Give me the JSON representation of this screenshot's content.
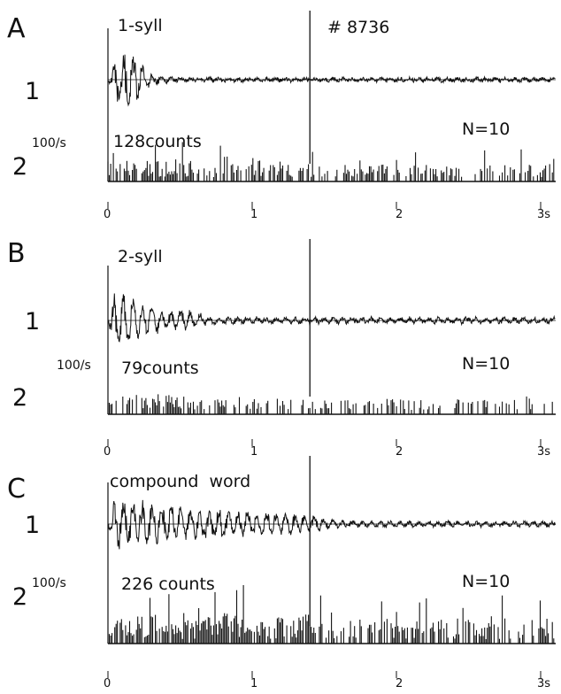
{
  "figure": {
    "cell_id": "# 8736",
    "marker_time_s": 1.4,
    "tick_labels": [
      "0",
      "1",
      "2",
      "3s"
    ],
    "channel_labels": [
      "1",
      "2"
    ],
    "rate_scale_label": "100/s",
    "ink_color": "#111111",
    "background": "#ffffff"
  },
  "panels": [
    {
      "letter": "A",
      "stimulus": "1-syll",
      "counts_label": "128counts",
      "n_label": "N=10"
    },
    {
      "letter": "B",
      "stimulus": "2-syll",
      "counts_label": "79counts",
      "n_label": "N=10"
    },
    {
      "letter": "C",
      "stimulus": "compound  word",
      "counts_label": "226 counts",
      "n_label": "N=10"
    }
  ],
  "chart_data": [
    {
      "type": "line",
      "panel": "A",
      "title": "1-syll",
      "x_unit": "s",
      "xlim": [
        0,
        3.1
      ],
      "x_ticks": [
        0,
        1,
        2,
        3
      ],
      "x_tick_labels": [
        "0",
        "1",
        "2",
        "3s"
      ],
      "series": [
        {
          "channel": "1",
          "kind": "waveform",
          "description_points": [
            [
              0,
              0
            ],
            [
              0.05,
              0.8
            ],
            [
              0.1,
              1.0
            ],
            [
              0.2,
              0.8
            ],
            [
              0.3,
              0.15
            ],
            [
              0.5,
              0.05
            ],
            [
              3.1,
              0.05
            ]
          ]
        },
        {
          "channel": "2",
          "kind": "spike-histogram",
          "total_counts": 128,
          "n_trials": 10,
          "relative_density": [
            [
              0,
              0.9
            ],
            [
              0.5,
              1.0
            ],
            [
              1.0,
              0.6
            ],
            [
              1.5,
              0.55
            ],
            [
              2.0,
              0.6
            ],
            [
              2.5,
              0.6
            ],
            [
              3.0,
              0.6
            ]
          ]
        }
      ],
      "marker_x": 1.4
    },
    {
      "type": "line",
      "panel": "B",
      "title": "2-syll",
      "x_unit": "s",
      "xlim": [
        0,
        3.1
      ],
      "x_ticks": [
        0,
        1,
        2,
        3
      ],
      "x_tick_labels": [
        "0",
        "1",
        "2",
        "3s"
      ],
      "series": [
        {
          "channel": "1",
          "kind": "waveform",
          "description_points": [
            [
              0,
              0
            ],
            [
              0.05,
              1.0
            ],
            [
              0.2,
              0.7
            ],
            [
              0.4,
              0.3
            ],
            [
              0.55,
              0.35
            ],
            [
              0.7,
              0.1
            ],
            [
              3.1,
              0.08
            ]
          ]
        },
        {
          "channel": "2",
          "kind": "spike-histogram",
          "total_counts": 79,
          "n_trials": 10,
          "relative_density": [
            [
              0,
              0.7
            ],
            [
              0.5,
              0.75
            ],
            [
              1.0,
              0.5
            ],
            [
              1.5,
              0.45
            ],
            [
              2.0,
              0.45
            ],
            [
              2.5,
              0.4
            ],
            [
              3.0,
              0.35
            ]
          ]
        }
      ],
      "marker_x": 1.4
    },
    {
      "type": "line",
      "panel": "C",
      "title": "compound  word",
      "x_unit": "s",
      "xlim": [
        0,
        3.1
      ],
      "x_ticks": [
        0,
        1,
        2,
        3
      ],
      "x_tick_labels": [
        "0",
        "1",
        "2",
        "3s"
      ],
      "series": [
        {
          "channel": "1",
          "kind": "waveform",
          "description_points": [
            [
              0,
              0
            ],
            [
              0.05,
              1.0
            ],
            [
              0.3,
              0.7
            ],
            [
              0.8,
              0.45
            ],
            [
              1.2,
              0.35
            ],
            [
              1.4,
              0.3
            ],
            [
              1.6,
              0.1
            ],
            [
              3.1,
              0.06
            ]
          ]
        },
        {
          "channel": "2",
          "kind": "spike-histogram",
          "total_counts": 226,
          "n_trials": 10,
          "relative_density": [
            [
              0,
              0.7
            ],
            [
              0.5,
              1.0
            ],
            [
              1.0,
              1.0
            ],
            [
              1.4,
              0.9
            ],
            [
              1.5,
              0.6
            ],
            [
              2.0,
              0.7
            ],
            [
              2.5,
              0.7
            ],
            [
              3.0,
              0.7
            ]
          ]
        }
      ],
      "marker_x": 1.4
    }
  ]
}
